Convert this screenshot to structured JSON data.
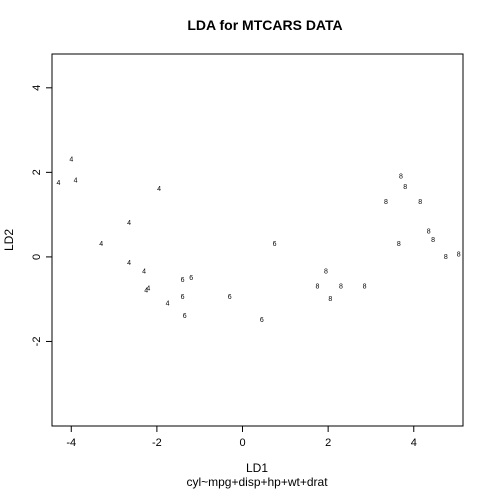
{
  "chart_data": {
    "type": "scatter",
    "title": "LDA for MTCARS DATA",
    "xlabel": "LD1",
    "subtitle": "cyl~mpg+disp+hp+wt+drat",
    "ylabel": "LD2",
    "xlim": [
      -4.45,
      5.15
    ],
    "ylim": [
      -4,
      4.8
    ],
    "xticks": [
      -4,
      -2,
      0,
      2,
      4
    ],
    "yticks": [
      -2,
      0,
      2,
      4
    ],
    "grid": false,
    "legend": "none",
    "points": [
      {
        "x": -4.3,
        "y": 1.75,
        "label": "4"
      },
      {
        "x": -4.0,
        "y": 2.3,
        "label": "4"
      },
      {
        "x": -3.9,
        "y": 1.8,
        "label": "4"
      },
      {
        "x": -3.3,
        "y": 0.3,
        "label": "4"
      },
      {
        "x": -2.65,
        "y": 0.8,
        "label": "4"
      },
      {
        "x": -2.65,
        "y": -0.15,
        "label": "4"
      },
      {
        "x": -2.3,
        "y": -0.35,
        "label": "4"
      },
      {
        "x": -2.25,
        "y": -0.8,
        "label": "4"
      },
      {
        "x": -2.2,
        "y": -0.75,
        "label": "4"
      },
      {
        "x": -1.95,
        "y": 1.6,
        "label": "4"
      },
      {
        "x": -1.75,
        "y": -1.1,
        "label": "4"
      },
      {
        "x": -1.4,
        "y": -0.55,
        "label": "6"
      },
      {
        "x": -1.4,
        "y": -0.95,
        "label": "6"
      },
      {
        "x": -1.35,
        "y": -1.4,
        "label": "6"
      },
      {
        "x": -1.2,
        "y": -0.5,
        "label": "6"
      },
      {
        "x": -0.3,
        "y": -0.95,
        "label": "6"
      },
      {
        "x": 0.45,
        "y": -1.5,
        "label": "6"
      },
      {
        "x": 0.75,
        "y": 0.3,
        "label": "6"
      },
      {
        "x": 1.75,
        "y": -0.7,
        "label": "8"
      },
      {
        "x": 1.95,
        "y": -0.35,
        "label": "8"
      },
      {
        "x": 2.05,
        "y": -1.0,
        "label": "8"
      },
      {
        "x": 2.3,
        "y": -0.7,
        "label": "8"
      },
      {
        "x": 2.85,
        "y": -0.7,
        "label": "8"
      },
      {
        "x": 3.35,
        "y": 1.3,
        "label": "8"
      },
      {
        "x": 3.65,
        "y": 0.3,
        "label": "8"
      },
      {
        "x": 3.7,
        "y": 1.9,
        "label": "8"
      },
      {
        "x": 3.8,
        "y": 1.65,
        "label": "8"
      },
      {
        "x": 4.15,
        "y": 1.3,
        "label": "8"
      },
      {
        "x": 4.35,
        "y": 0.6,
        "label": "8"
      },
      {
        "x": 4.45,
        "y": 0.4,
        "label": "8"
      },
      {
        "x": 4.75,
        "y": 0.0,
        "label": "8"
      },
      {
        "x": 5.05,
        "y": 0.05,
        "label": "8"
      }
    ]
  }
}
